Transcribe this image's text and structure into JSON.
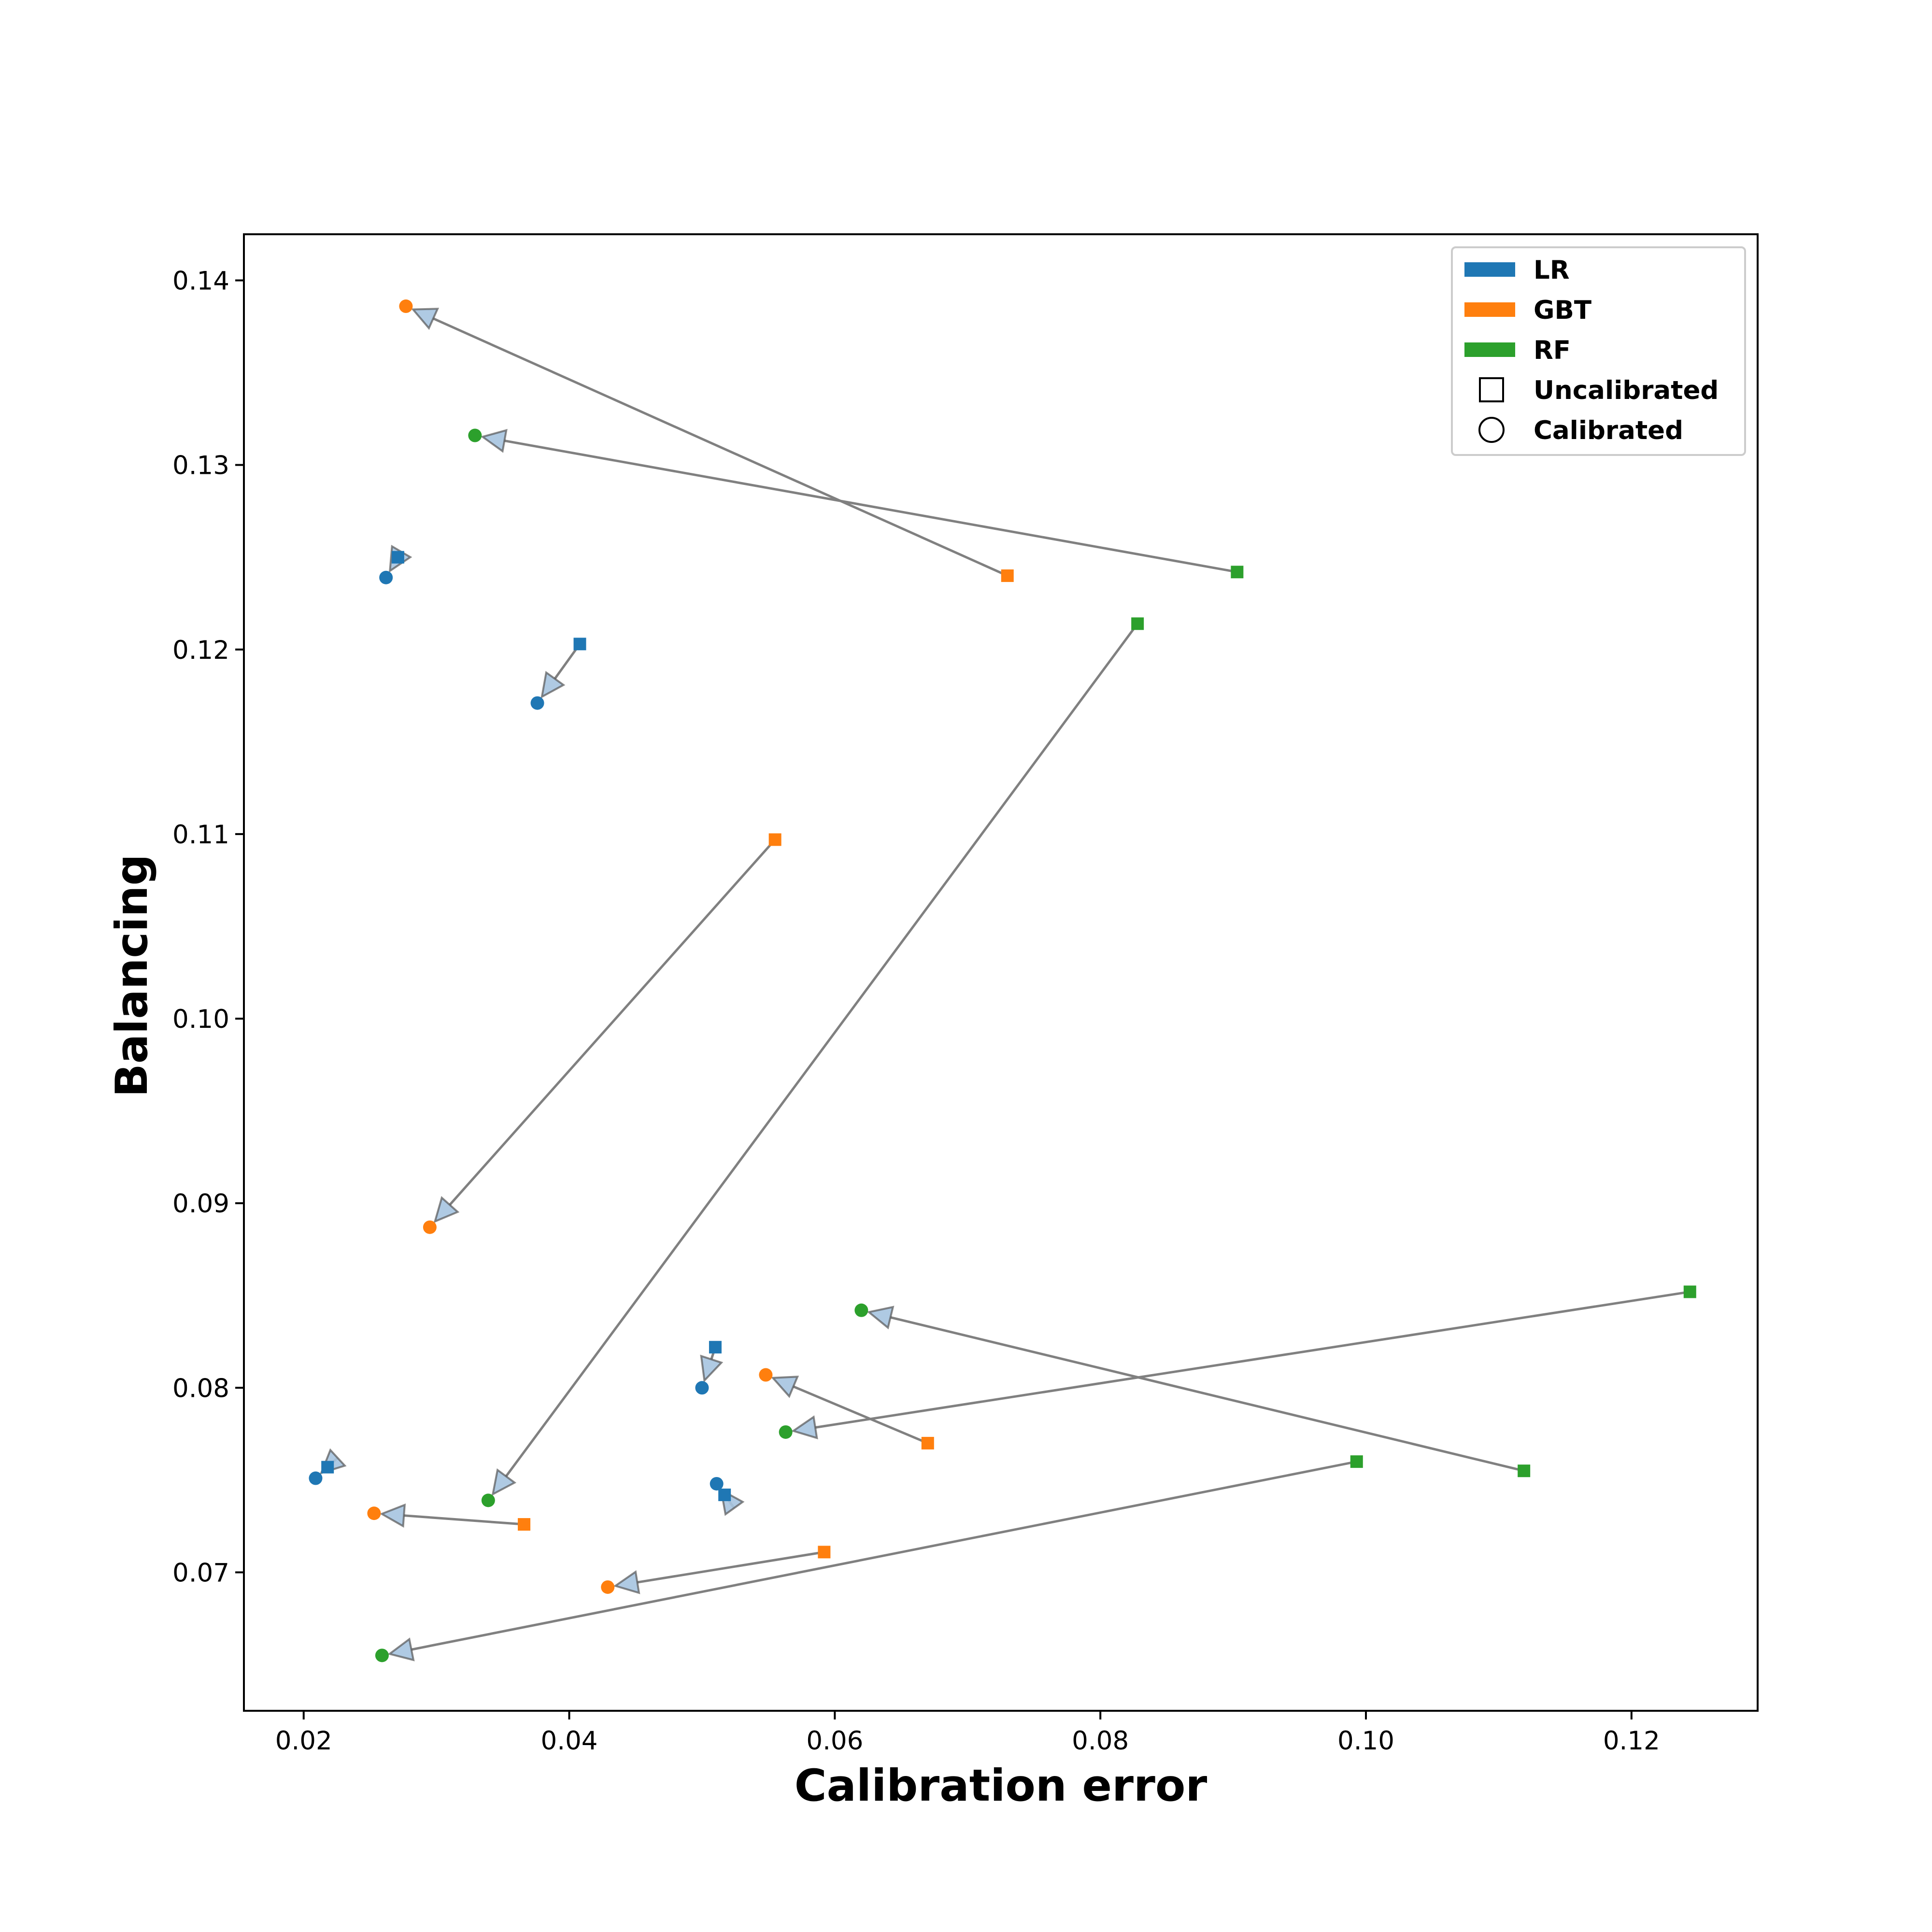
{
  "colors": {
    "LR": "#1f77b4",
    "GBT": "#ff7f0e",
    "RF": "#2ca02c",
    "arrow_line": "#808080",
    "arrow_head": "#a6c4e0"
  },
  "chart_data": {
    "type": "scatter",
    "title": "",
    "xlabel": "Calibration error",
    "ylabel": "Balancing",
    "xlim": [
      0.0155,
      0.1295
    ],
    "ylim": [
      0.0625,
      0.1425
    ],
    "xticks": [
      0.02,
      0.04,
      0.06,
      0.08,
      0.1,
      0.12
    ],
    "xtick_labels": [
      "0.02",
      "0.04",
      "0.06",
      "0.08",
      "0.10",
      "0.12"
    ],
    "yticks": [
      0.07,
      0.08,
      0.09,
      0.1,
      0.11,
      0.12,
      0.13,
      0.14
    ],
    "ytick_labels": [
      "0.07",
      "0.08",
      "0.09",
      "0.10",
      "0.11",
      "0.12",
      "0.13",
      "0.14"
    ],
    "grid": false,
    "legend_position": "top-right",
    "legend": [
      {
        "label": "LR",
        "kind": "patch",
        "color": "#1f77b4"
      },
      {
        "label": "GBT",
        "kind": "patch",
        "color": "#ff7f0e"
      },
      {
        "label": "RF",
        "kind": "patch",
        "color": "#2ca02c"
      },
      {
        "label": "Uncalibrated",
        "kind": "square"
      },
      {
        "label": "Calibrated",
        "kind": "circle"
      }
    ],
    "pairs": [
      {
        "model": "LR",
        "uncalibrated": [
          0.0271,
          0.125
        ],
        "calibrated": [
          0.0262,
          0.1239
        ]
      },
      {
        "model": "LR",
        "uncalibrated": [
          0.0408,
          0.1203
        ],
        "calibrated": [
          0.0376,
          0.1171
        ]
      },
      {
        "model": "LR",
        "uncalibrated": [
          0.051,
          0.0822
        ],
        "calibrated": [
          0.05,
          0.08
        ]
      },
      {
        "model": "LR",
        "uncalibrated": [
          0.0218,
          0.0757
        ],
        "calibrated": [
          0.0209,
          0.0751
        ]
      },
      {
        "model": "LR",
        "uncalibrated": [
          0.0517,
          0.0742
        ],
        "calibrated": [
          0.0511,
          0.0748
        ]
      },
      {
        "model": "GBT",
        "uncalibrated": [
          0.073,
          0.124
        ],
        "calibrated": [
          0.0277,
          0.1386
        ]
      },
      {
        "model": "GBT",
        "uncalibrated": [
          0.0555,
          0.1097
        ],
        "calibrated": [
          0.0295,
          0.0887
        ]
      },
      {
        "model": "GBT",
        "uncalibrated": [
          0.067,
          0.077
        ],
        "calibrated": [
          0.0548,
          0.0807
        ]
      },
      {
        "model": "GBT",
        "uncalibrated": [
          0.0366,
          0.0726
        ],
        "calibrated": [
          0.0253,
          0.0732
        ]
      },
      {
        "model": "GBT",
        "uncalibrated": [
          0.0592,
          0.0711
        ],
        "calibrated": [
          0.0429,
          0.0692
        ]
      },
      {
        "model": "RF",
        "uncalibrated": [
          0.0903,
          0.1242
        ],
        "calibrated": [
          0.0329,
          0.1316
        ]
      },
      {
        "model": "RF",
        "uncalibrated": [
          0.0828,
          0.1214
        ],
        "calibrated": [
          0.0339,
          0.0739
        ]
      },
      {
        "model": "RF",
        "uncalibrated": [
          0.1244,
          0.0852
        ],
        "calibrated": [
          0.0563,
          0.0776
        ]
      },
      {
        "model": "RF",
        "uncalibrated": [
          0.1119,
          0.0755
        ],
        "calibrated": [
          0.062,
          0.0842
        ]
      },
      {
        "model": "RF",
        "uncalibrated": [
          0.0993,
          0.076
        ],
        "calibrated": [
          0.0259,
          0.0655
        ]
      }
    ]
  }
}
